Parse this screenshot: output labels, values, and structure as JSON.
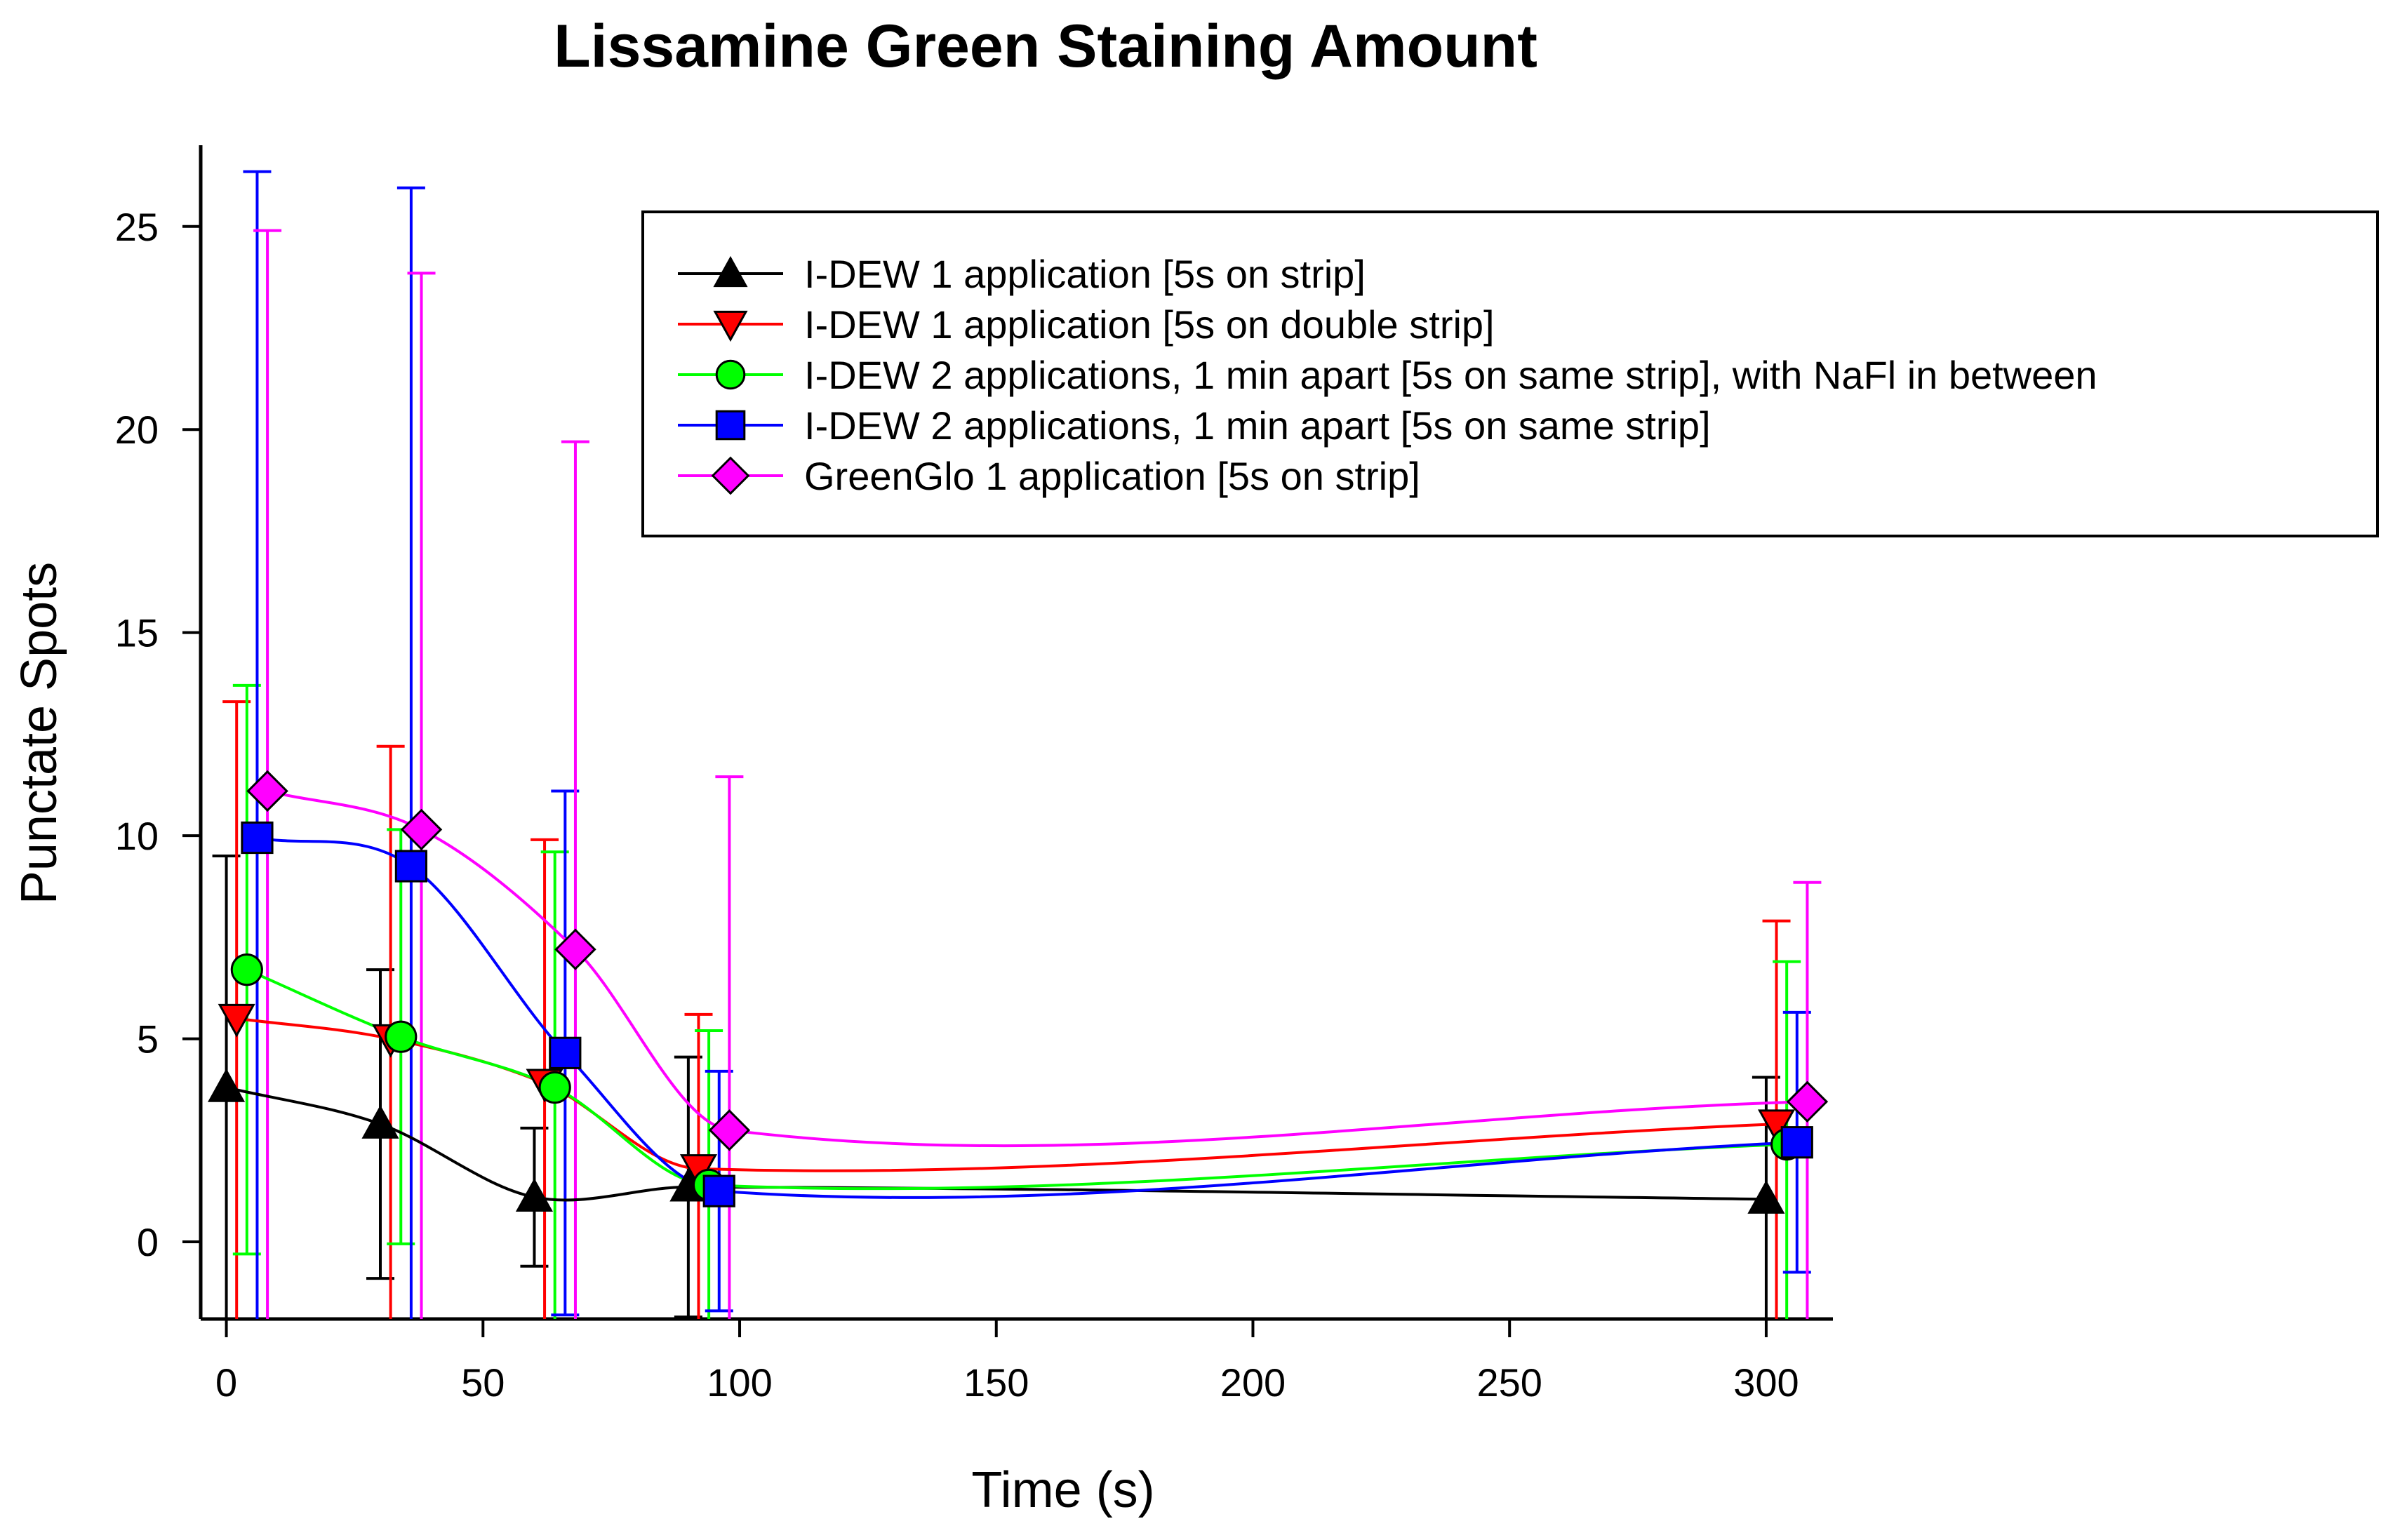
{
  "chart_data": {
    "type": "line",
    "title": "Lissamine Green Staining Amount",
    "xlabel": "Time (s)",
    "ylabel": "Punctate Spots",
    "xlim": [
      -5,
      313
    ],
    "ylim": [
      -1.9,
      27
    ],
    "xticks": [
      0,
      50,
      100,
      150,
      200,
      250,
      300
    ],
    "yticks": [
      0,
      5,
      10,
      15,
      20,
      25
    ],
    "legend_position": "top-right",
    "series": [
      {
        "name": "I-DEW 1 application [5s on strip]",
        "color": "#000000",
        "marker": "triangle-up",
        "x": [
          0,
          30,
          60,
          90,
          300
        ],
        "y": [
          3.8,
          2.9,
          1.1,
          1.35,
          1.05
        ],
        "err": [
          5.7,
          3.8,
          1.7,
          3.2,
          3.0
        ]
      },
      {
        "name": "I-DEW 1 application [5s on double strip]",
        "color": "#ff0000",
        "marker": "triangle-down",
        "x": [
          2,
          32,
          62,
          92,
          302
        ],
        "y": [
          5.5,
          5.0,
          3.9,
          1.8,
          2.9
        ],
        "err": [
          7.8,
          7.2,
          6.0,
          3.8,
          5.0
        ]
      },
      {
        "name": "I-DEW 2 applications, 1 min apart  [5s on same strip],  with NaFl in between",
        "color": "#00ff00",
        "marker": "circle",
        "x": [
          4,
          34,
          64,
          94,
          304
        ],
        "y": [
          6.7,
          5.05,
          3.8,
          1.4,
          2.4
        ],
        "err": [
          7.0,
          5.1,
          5.8,
          3.8,
          4.5
        ]
      },
      {
        "name": "I-DEW 2 applications, 1 min apart [5s on same strip]",
        "color": "#0000ff",
        "marker": "square",
        "x": [
          6,
          36,
          66,
          96,
          306
        ],
        "y": [
          9.95,
          9.25,
          4.65,
          1.25,
          2.45
        ],
        "err": [
          16.4,
          16.7,
          6.45,
          2.95,
          3.2
        ]
      },
      {
        "name": "GreenGlo 1 application [5s on strip]",
        "color": "#ff00ff",
        "marker": "diamond",
        "x": [
          8,
          38,
          68,
          98,
          308
        ],
        "y": [
          11.1,
          10.15,
          7.2,
          2.75,
          3.45
        ],
        "err": [
          13.8,
          13.7,
          12.5,
          8.7,
          5.4
        ]
      }
    ]
  }
}
